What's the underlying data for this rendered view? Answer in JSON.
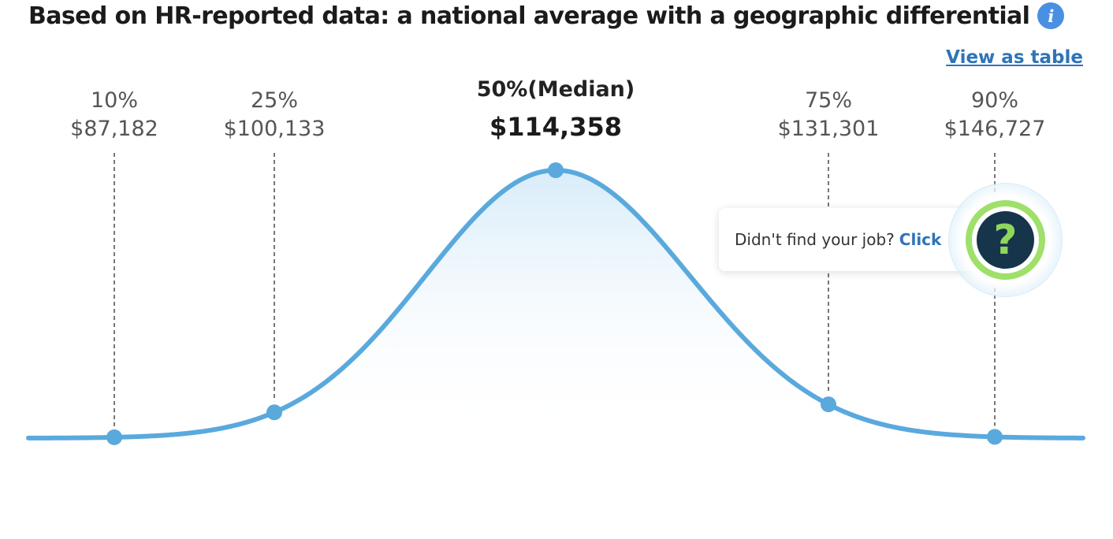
{
  "header": {
    "title": "Based on HR-reported data: a national average with a geographic differential",
    "info_icon": "info-icon",
    "view_table_label": "View as table"
  },
  "chart_data": {
    "type": "area",
    "curve": "bell",
    "percentiles": [
      {
        "label": "10%",
        "value": "$87,182",
        "amount": 87182
      },
      {
        "label": "25%",
        "value": "$100,133",
        "amount": 100133
      },
      {
        "label": "50%(Median)",
        "value": "$114,358",
        "amount": 114358,
        "highlight": true
      },
      {
        "label": "75%",
        "value": "$131,301",
        "amount": 131301
      },
      {
        "label": "90%",
        "value": "$146,727",
        "amount": 146727
      }
    ],
    "colors": {
      "curve": "#5aa9dd",
      "fill_top": "#dff0fa",
      "marker": "#5aa9dd",
      "guide": "#777777"
    }
  },
  "help_widget": {
    "text": "Didn't find your job?",
    "link": "Click",
    "icon": "question-icon",
    "glyph": "?",
    "colors": {
      "ring": "#9ee06a",
      "core": "#16344a",
      "glyph": "#8fd65c"
    }
  }
}
